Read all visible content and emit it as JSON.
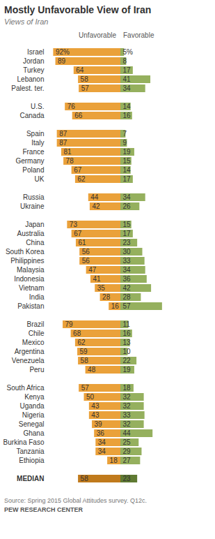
{
  "chart_data": {
    "type": "bar",
    "orientation": "horizontal",
    "title": "Mostly Unfavorable View of Iran",
    "subtitle": "Views of Iran",
    "categories": [
      "Israel",
      "Jordan",
      "Turkey",
      "Lebanon",
      "Palest. ter.",
      null,
      "U.S.",
      "Canada",
      null,
      "Spain",
      "Italy",
      "France",
      "Germany",
      "Poland",
      "UK",
      null,
      "Russia",
      "Ukraine",
      null,
      "Japan",
      "Australia",
      "China",
      "South Korea",
      "Philippines",
      "Malaysia",
      "Indonesia",
      "Vietnam",
      "India",
      "Pakistan",
      null,
      "Brazil",
      "Chile",
      "Mexico",
      "Argentina",
      "Venezuela",
      "Peru",
      null,
      "South Africa",
      "Kenya",
      "Uganda",
      "Nigeria",
      "Senegal",
      "Ghana",
      "Burkina Faso",
      "Tanzania",
      "Ethiopia",
      null,
      "MEDIAN"
    ],
    "series": [
      {
        "name": "Unfavorable",
        "values": [
          92,
          89,
          64,
          58,
          57,
          null,
          76,
          66,
          null,
          87,
          87,
          81,
          78,
          67,
          62,
          null,
          44,
          42,
          null,
          73,
          67,
          61,
          56,
          56,
          47,
          41,
          35,
          28,
          16,
          null,
          79,
          68,
          62,
          59,
          58,
          48,
          null,
          57,
          50,
          43,
          43,
          39,
          36,
          34,
          34,
          18,
          null,
          58
        ],
        "value_labels": [
          "92%",
          "89",
          "64",
          "58",
          "57",
          null,
          "76",
          "66",
          null,
          "87",
          "87",
          "81",
          "78",
          "67",
          "62",
          null,
          "44",
          "42",
          null,
          "73",
          "67",
          "61",
          "56",
          "56",
          "47",
          "41",
          "35",
          "28",
          "16",
          null,
          "79",
          "68",
          "62",
          "59",
          "58",
          "48",
          null,
          "57",
          "50",
          "43",
          "43",
          "39",
          "36",
          "34",
          "34",
          "18",
          null,
          "58"
        ],
        "colors": [
          "#eaa13a",
          "#eaa13a",
          "#eaa13a",
          "#eaa13a",
          "#eaa13a",
          null,
          "#eaa13a",
          "#eaa13a",
          null,
          "#eaa13a",
          "#eaa13a",
          "#eaa13a",
          "#eaa13a",
          "#eaa13a",
          "#eaa13a",
          null,
          "#eaa13a",
          "#eaa13a",
          null,
          "#eaa13a",
          "#eaa13a",
          "#eaa13a",
          "#eaa13a",
          "#eaa13a",
          "#eaa13a",
          "#eaa13a",
          "#eaa13a",
          "#eaa13a",
          "#eaa13a",
          null,
          "#eaa13a",
          "#eaa13a",
          "#eaa13a",
          "#eaa13a",
          "#eaa13a",
          "#eaa13a",
          null,
          "#eaa13a",
          "#eaa13a",
          "#eaa13a",
          "#eaa13a",
          "#eaa13a",
          "#eaa13a",
          "#eaa13a",
          "#eaa13a",
          "#eaa13a",
          null,
          "#c07a1c"
        ]
      },
      {
        "name": "Favorable",
        "values": [
          5,
          8,
          17,
          41,
          34,
          null,
          14,
          16,
          null,
          7,
          9,
          19,
          15,
          14,
          17,
          null,
          34,
          26,
          null,
          15,
          17,
          23,
          30,
          33,
          34,
          36,
          42,
          28,
          57,
          null,
          11,
          16,
          13,
          10,
          22,
          19,
          null,
          18,
          32,
          32,
          33,
          32,
          44,
          25,
          29,
          27,
          null,
          23
        ],
        "value_labels": [
          "5%",
          "8",
          "17",
          "41",
          "34",
          null,
          "14",
          "16",
          null,
          "7",
          "9",
          "19",
          "15",
          "14",
          "17",
          null,
          "34",
          "26",
          null,
          "15",
          "17",
          "23",
          "30",
          "33",
          "34",
          "36",
          "42",
          "28",
          "57",
          null,
          "11",
          "16",
          "13",
          "10",
          "22",
          "19",
          null,
          "18",
          "32",
          "32",
          "33",
          "32",
          "44",
          "25",
          "29",
          "27",
          null,
          "23"
        ],
        "colors": [
          "#95b05e",
          "#95b05e",
          "#95b05e",
          "#95b05e",
          "#95b05e",
          null,
          "#95b05e",
          "#95b05e",
          null,
          "#95b05e",
          "#95b05e",
          "#95b05e",
          "#95b05e",
          "#95b05e",
          "#95b05e",
          null,
          "#95b05e",
          "#95b05e",
          null,
          "#95b05e",
          "#95b05e",
          "#95b05e",
          "#95b05e",
          "#95b05e",
          "#95b05e",
          "#95b05e",
          "#95b05e",
          "#95b05e",
          "#95b05e",
          null,
          "#95b05e",
          "#95b05e",
          "#95b05e",
          "#95b05e",
          "#95b05e",
          "#95b05e",
          null,
          "#95b05e",
          "#95b05e",
          "#95b05e",
          "#95b05e",
          "#95b05e",
          "#95b05e",
          "#95b05e",
          "#95b05e",
          "#95b05e",
          null,
          "#5f7a32"
        ]
      }
    ],
    "xlim": [
      0,
      100
    ],
    "data_labels": true,
    "tick_labels": "y",
    "source": "Source: Spring 2015 Global Attitudes survey. Q12c.",
    "credit": "PEW RESEARCH CENTER"
  }
}
